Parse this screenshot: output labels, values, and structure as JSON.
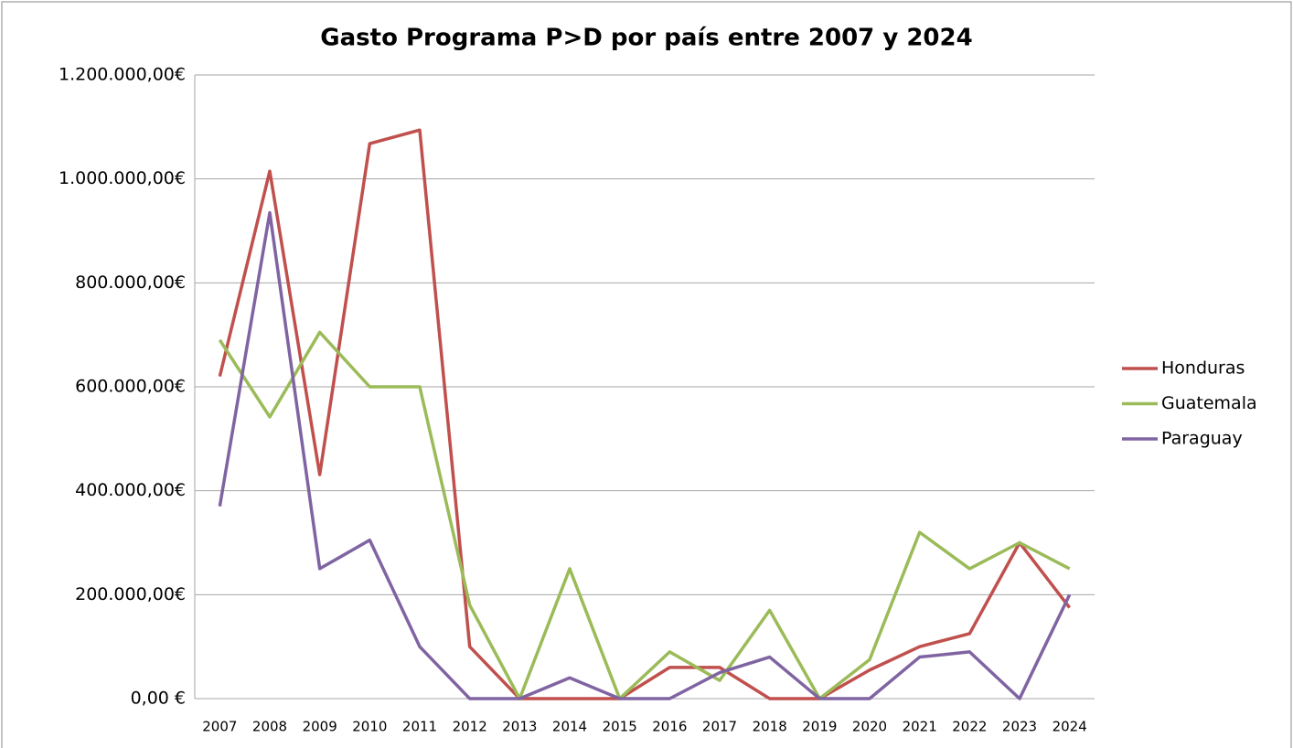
{
  "chart_data": {
    "type": "line",
    "title": "Gasto Programa P>D por país entre 2007 y 2024",
    "categories": [
      "2007",
      "2008",
      "2009",
      "2010",
      "2011",
      "2012",
      "2013",
      "2014",
      "2015",
      "2016",
      "2017",
      "2018",
      "2019",
      "2020",
      "2021",
      "2022",
      "2023",
      "2024"
    ],
    "series": [
      {
        "name": "Honduras",
        "color": "#c0504d",
        "values": [
          620000,
          1015000,
          431000,
          1068000,
          1094000,
          100000,
          0,
          0,
          0,
          60000,
          60000,
          0,
          0,
          55000,
          100000,
          125000,
          300000,
          175000
        ]
      },
      {
        "name": "Guatemala",
        "color": "#9bbb59",
        "values": [
          690000,
          542000,
          705000,
          600000,
          600000,
          180000,
          0,
          250000,
          0,
          90000,
          35000,
          170000,
          0,
          75000,
          320000,
          250000,
          300000,
          250000
        ]
      },
      {
        "name": "Paraguay",
        "color": "#8064a2",
        "values": [
          370000,
          935000,
          250000,
          305000,
          100000,
          0,
          0,
          40000,
          0,
          0,
          50000,
          80000,
          0,
          0,
          80000,
          90000,
          0,
          200000
        ]
      }
    ],
    "ylim": [
      0,
      1200000
    ],
    "yticks": [
      {
        "value": 0,
        "label": "0,00 €"
      },
      {
        "value": 200000,
        "label": "200.000,00€"
      },
      {
        "value": 400000,
        "label": "400.000,00€"
      },
      {
        "value": 600000,
        "label": "600.000,00€"
      },
      {
        "value": 800000,
        "label": "800.000,00€"
      },
      {
        "value": 1000000,
        "label": "1.000.000,00€"
      },
      {
        "value": 1200000,
        "label": "1.200.000,00€"
      }
    ],
    "grid": true,
    "legend": "right"
  }
}
